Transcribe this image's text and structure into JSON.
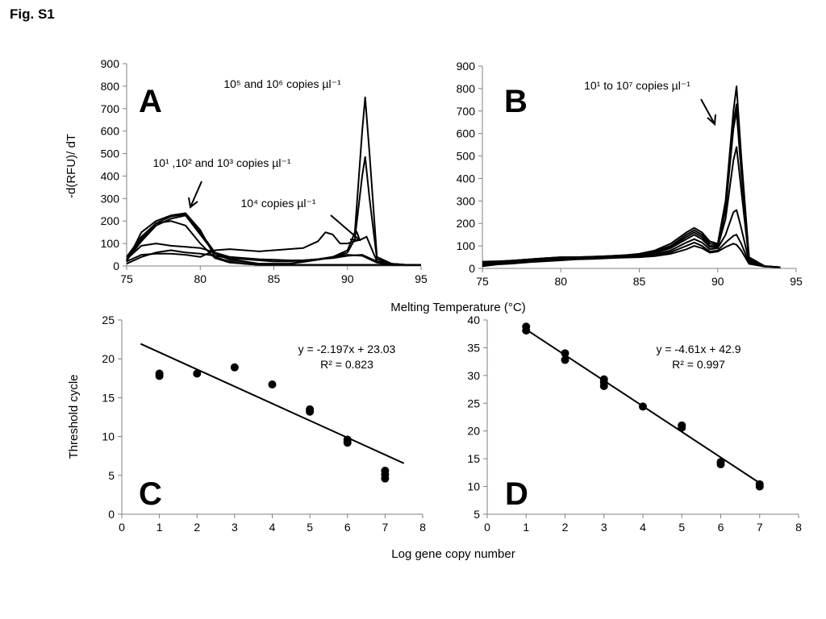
{
  "figure_title": "Fig. S1",
  "shared_labels": {
    "melting_temperature": "Melting Temperature (°C)",
    "log_gene_copy": "Log gene copy number"
  },
  "chart_data": [
    {
      "panel": "A",
      "type": "line",
      "ylabel": "-d(RFU)/ dT",
      "xlim": [
        75,
        95
      ],
      "ylim": [
        0,
        900
      ],
      "x_ticks": [
        75,
        80,
        85,
        90,
        95
      ],
      "y_ticks": [
        0,
        100,
        200,
        300,
        400,
        500,
        600,
        700,
        800,
        900
      ],
      "annotations": [
        {
          "text": "10⁵ and 10⁶ copies µl⁻¹"
        },
        {
          "text": "10¹ ,10² and 10³ copies µl⁻¹"
        },
        {
          "text": "10⁴ copies µl⁻¹"
        }
      ],
      "series": [
        {
          "x": [
            75,
            76,
            77,
            78,
            79,
            80,
            81,
            82,
            83,
            84,
            85,
            86,
            87,
            88,
            89,
            90,
            90.5,
            91,
            91.2,
            91.5,
            92,
            93,
            94,
            95
          ],
          "y": [
            30,
            120,
            190,
            220,
            230,
            150,
            60,
            30,
            20,
            10,
            10,
            10,
            20,
            30,
            40,
            70,
            150,
            600,
            750,
            500,
            40,
            10,
            5,
            5
          ]
        },
        {
          "x": [
            75,
            76,
            77,
            78,
            79,
            80,
            81,
            82,
            83,
            84,
            85,
            86,
            87,
            88,
            89,
            90,
            90.5,
            91,
            91.2,
            91.5,
            92,
            93,
            94,
            95
          ],
          "y": [
            25,
            110,
            180,
            210,
            225,
            140,
            55,
            28,
            18,
            10,
            10,
            10,
            18,
            28,
            38,
            60,
            120,
            400,
            485,
            300,
            30,
            10,
            5,
            5
          ]
        },
        {
          "x": [
            75,
            76,
            77,
            78,
            79,
            80,
            81,
            82,
            83,
            84,
            85,
            86,
            87,
            88,
            89,
            90,
            91,
            92,
            93,
            94,
            95
          ],
          "y": [
            20,
            150,
            200,
            225,
            235,
            160,
            40,
            20,
            10,
            5,
            5,
            5,
            5,
            5,
            5,
            5,
            5,
            5,
            5,
            5,
            5
          ]
        },
        {
          "x": [
            75,
            76,
            77,
            78,
            79,
            80,
            81,
            82,
            83,
            84,
            85,
            86,
            87,
            88,
            89,
            90,
            91,
            92,
            93,
            94,
            95
          ],
          "y": [
            40,
            130,
            190,
            200,
            180,
            100,
            35,
            15,
            10,
            5,
            5,
            5,
            5,
            5,
            5,
            5,
            5,
            5,
            5,
            5,
            5
          ]
        },
        {
          "x": [
            75,
            76,
            77,
            78,
            79,
            80,
            81,
            82,
            83,
            84,
            85,
            86,
            87,
            88,
            89,
            90,
            91,
            92,
            93,
            94,
            95
          ],
          "y": [
            30,
            90,
            100,
            90,
            85,
            80,
            60,
            40,
            35,
            30,
            28,
            25,
            25,
            30,
            35,
            45,
            50,
            20,
            10,
            5,
            5
          ]
        },
        {
          "x": [
            75,
            76,
            77,
            78,
            79,
            80,
            81,
            82,
            83,
            84,
            85,
            86,
            87,
            88,
            89,
            90,
            91,
            92,
            93,
            94,
            95
          ],
          "y": [
            10,
            40,
            60,
            70,
            60,
            55,
            45,
            35,
            30,
            25,
            20,
            20,
            25,
            30,
            40,
            50,
            45,
            15,
            5,
            5,
            5
          ]
        },
        {
          "x": [
            75,
            76,
            77,
            78,
            79,
            80,
            81,
            82,
            83,
            84,
            85,
            86,
            87,
            88,
            88.5,
            89,
            89.5,
            90,
            91,
            91.3,
            92,
            93,
            94,
            95
          ],
          "y": [
            20,
            50,
            55,
            55,
            50,
            40,
            70,
            75,
            70,
            65,
            70,
            75,
            80,
            110,
            150,
            140,
            100,
            100,
            120,
            130,
            20,
            10,
            5,
            5
          ]
        }
      ]
    },
    {
      "panel": "B",
      "type": "line",
      "xlim": [
        75,
        95
      ],
      "ylim": [
        0,
        900
      ],
      "x_ticks": [
        75,
        80,
        85,
        90,
        95
      ],
      "y_ticks": [
        0,
        100,
        200,
        300,
        400,
        500,
        600,
        700,
        800,
        900
      ],
      "annotations": [
        {
          "text": "10¹ to 10⁷ copies µl⁻¹"
        }
      ],
      "series": [
        {
          "x": [
            75,
            76,
            77,
            78,
            79,
            80,
            81,
            82,
            83,
            84,
            85,
            86,
            87,
            88,
            88.5,
            89,
            89.5,
            90,
            90.5,
            91,
            91.2,
            91.5,
            92,
            93,
            94
          ],
          "y": [
            20,
            30,
            35,
            40,
            45,
            50,
            50,
            52,
            55,
            58,
            65,
            80,
            110,
            160,
            180,
            160,
            120,
            110,
            300,
            700,
            810,
            500,
            50,
            10,
            5
          ]
        },
        {
          "x": [
            75,
            76,
            77,
            78,
            79,
            80,
            81,
            82,
            83,
            84,
            85,
            86,
            87,
            88,
            88.5,
            89,
            89.5,
            90,
            90.5,
            91,
            91.2,
            91.5,
            92,
            93,
            94
          ],
          "y": [
            25,
            30,
            35,
            40,
            45,
            50,
            50,
            52,
            55,
            58,
            62,
            75,
            100,
            150,
            170,
            150,
            110,
            105,
            280,
            650,
            730,
            450,
            45,
            10,
            5
          ]
        },
        {
          "x": [
            75,
            76,
            77,
            78,
            79,
            80,
            81,
            82,
            83,
            84,
            85,
            86,
            87,
            88,
            88.5,
            89,
            89.5,
            90,
            90.5,
            91,
            91.2,
            91.5,
            92,
            93,
            94
          ],
          "y": [
            30,
            32,
            35,
            40,
            45,
            48,
            50,
            50,
            52,
            55,
            60,
            70,
            95,
            140,
            160,
            140,
            100,
            100,
            260,
            620,
            700,
            430,
            40,
            10,
            5
          ]
        },
        {
          "x": [
            75,
            76,
            77,
            78,
            79,
            80,
            81,
            82,
            83,
            84,
            85,
            86,
            87,
            88,
            88.5,
            89,
            89.5,
            90,
            90.5,
            91,
            91.2,
            91.5,
            92,
            93,
            94
          ],
          "y": [
            20,
            28,
            33,
            38,
            42,
            46,
            48,
            50,
            52,
            55,
            58,
            68,
            90,
            130,
            150,
            130,
            95,
            95,
            220,
            480,
            540,
            350,
            35,
            10,
            5
          ]
        },
        {
          "x": [
            75,
            76,
            77,
            78,
            79,
            80,
            81,
            82,
            83,
            84,
            85,
            86,
            87,
            88,
            88.5,
            89,
            89.5,
            90,
            90.5,
            91,
            91.2,
            91.5,
            92,
            93,
            94
          ],
          "y": [
            15,
            25,
            30,
            35,
            40,
            42,
            45,
            48,
            50,
            52,
            55,
            62,
            80,
            115,
            130,
            115,
            85,
            90,
            150,
            250,
            260,
            180,
            30,
            10,
            5
          ]
        },
        {
          "x": [
            75,
            76,
            77,
            78,
            79,
            80,
            81,
            82,
            83,
            84,
            85,
            86,
            87,
            88,
            88.5,
            89,
            89.5,
            90,
            90.5,
            91,
            91.2,
            91.5,
            92,
            93,
            94
          ],
          "y": [
            10,
            20,
            25,
            30,
            35,
            40,
            42,
            45,
            48,
            50,
            52,
            58,
            72,
            100,
            115,
            100,
            75,
            80,
            115,
            145,
            150,
            110,
            25,
            8,
            5
          ]
        },
        {
          "x": [
            75,
            76,
            77,
            78,
            79,
            80,
            81,
            82,
            83,
            84,
            85,
            86,
            87,
            88,
            88.5,
            89,
            89.5,
            90,
            90.5,
            91,
            91.2,
            91.5,
            92,
            93,
            94
          ],
          "y": [
            10,
            18,
            22,
            28,
            32,
            36,
            40,
            42,
            45,
            48,
            50,
            55,
            65,
            85,
            100,
            90,
            70,
            75,
            95,
            110,
            105,
            80,
            20,
            8,
            5
          ]
        }
      ]
    },
    {
      "panel": "C",
      "type": "scatter",
      "ylabel": "Threshold cycle",
      "xlim": [
        0,
        8
      ],
      "ylim": [
        0,
        25
      ],
      "x_ticks": [
        0,
        1,
        2,
        3,
        4,
        5,
        6,
        7,
        8
      ],
      "y_ticks": [
        0,
        5,
        10,
        15,
        20,
        25
      ],
      "equation": "y = -2.197x + 23.03",
      "r2": "R² = 0.823",
      "trendline": {
        "x": [
          0.5,
          7.5
        ],
        "y": [
          21.9315,
          6.5535
        ]
      },
      "points": {
        "x": [
          1,
          1,
          2,
          3,
          4,
          5,
          5,
          6,
          6,
          7,
          7,
          7
        ],
        "y": [
          18.1,
          17.8,
          18.1,
          18.9,
          16.7,
          13.5,
          13.2,
          9.6,
          9.2,
          5.6,
          5.1,
          4.6
        ]
      }
    },
    {
      "panel": "D",
      "type": "scatter",
      "xlim": [
        0,
        8
      ],
      "ylim": [
        5,
        40
      ],
      "x_ticks": [
        0,
        1,
        2,
        3,
        4,
        5,
        6,
        7,
        8
      ],
      "y_ticks": [
        5,
        10,
        15,
        20,
        25,
        30,
        35,
        40
      ],
      "equation": "y = -4.61x + 42.9",
      "r2": "R² = 0.997",
      "trendline": {
        "x": [
          1,
          7
        ],
        "y": [
          38.29,
          10.63
        ]
      },
      "points": {
        "x": [
          1,
          1,
          2,
          2,
          3,
          3,
          3,
          4,
          5,
          5,
          6,
          6,
          7,
          7
        ],
        "y": [
          38.8,
          38.1,
          34.0,
          32.8,
          29.3,
          28.8,
          28.1,
          24.4,
          21.0,
          20.6,
          14.4,
          14.0,
          10.4,
          10.0
        ]
      }
    }
  ]
}
